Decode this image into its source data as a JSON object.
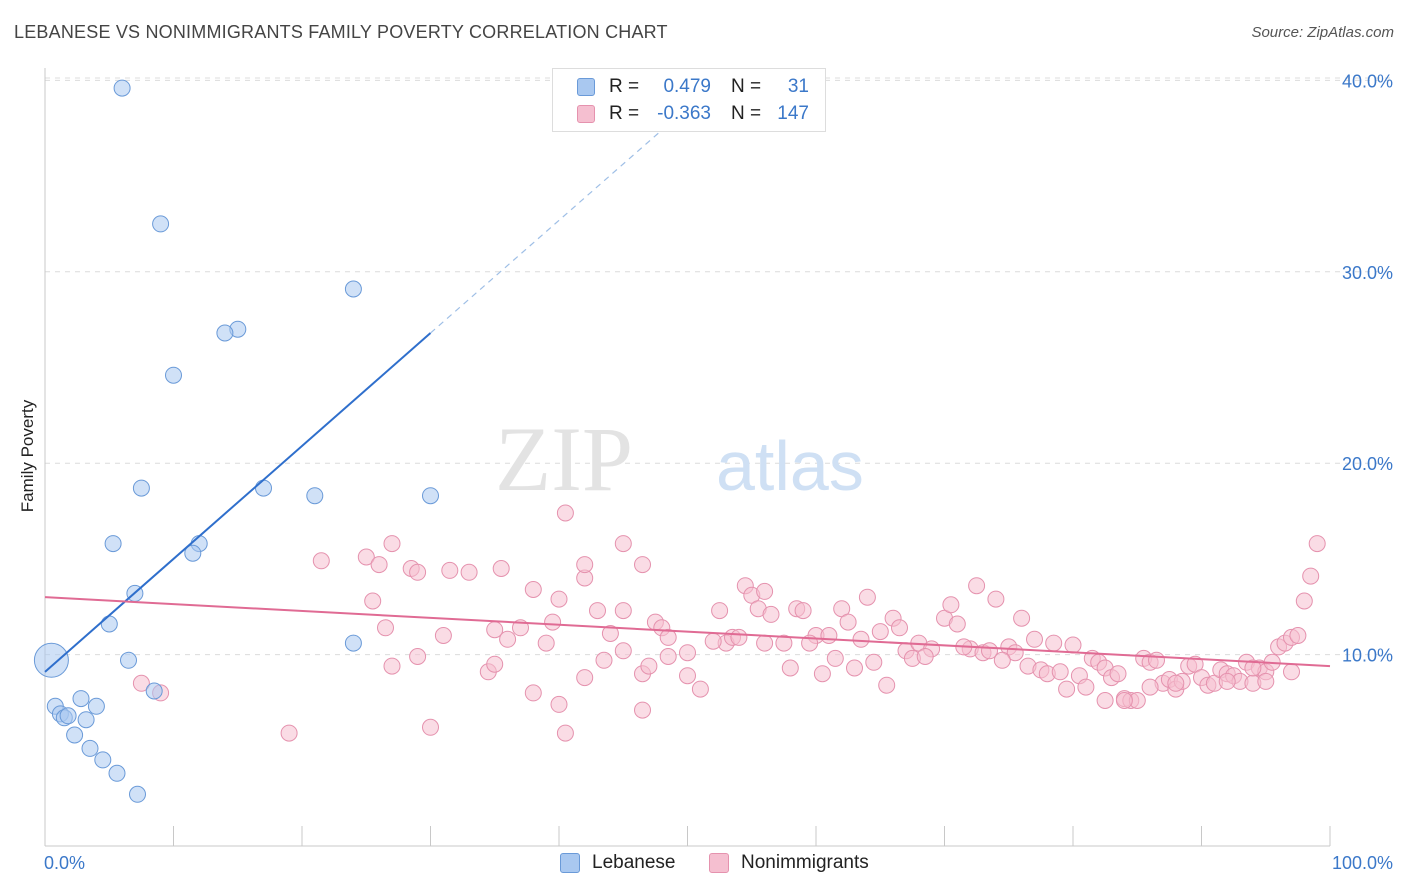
{
  "title": "LEBANESE VS NONIMMIGRANTS FAMILY POVERTY CORRELATION CHART",
  "source": "Source: ZipAtlas.com",
  "watermark": {
    "zip": "ZIP",
    "atlas": "atlas"
  },
  "legend": {
    "r_label": "R =",
    "n_label": "N =",
    "rows": [
      {
        "r": "0.479",
        "n": "31",
        "fill": "#a9c8f0",
        "stroke": "#6a9ad8"
      },
      {
        "r": "-0.363",
        "n": "147",
        "fill": "#f5bfd0",
        "stroke": "#e592ae"
      }
    ]
  },
  "bottom_legend": [
    {
      "label": "Lebanese",
      "fill": "#a9c8f0",
      "stroke": "#6a9ad8"
    },
    {
      "label": "Nonimmigrants",
      "fill": "#f5bfd0",
      "stroke": "#e592ae"
    }
  ],
  "chart_data": {
    "type": "scatter",
    "title": "LEBANESE VS NONIMMIGRANTS FAMILY POVERTY CORRELATION CHART",
    "xlabel": "",
    "ylabel": "Family Poverty",
    "xlim": [
      0,
      100
    ],
    "ylim": [
      0,
      42
    ],
    "x_tick_labels": [
      "0.0%",
      "100.0%"
    ],
    "y_ticks": [
      10,
      20,
      30,
      40
    ],
    "y_tick_labels": [
      "10.0%",
      "20.0%",
      "30.0%",
      "40.0%"
    ],
    "grid": "horizontal dashed",
    "legend_position": "top-center",
    "series": [
      {
        "name": "Lebanese",
        "color": "#6a9ad8",
        "fill": "#a9c8f0",
        "line_color": "#2f6fcc",
        "trend": {
          "x0": 0,
          "y0": 9.1,
          "x1": 30,
          "y1": 26.8,
          "dash_x_end": 48,
          "dash_y_end": 37.4
        },
        "points": [
          [
            6,
            39.6
          ],
          [
            9,
            32.5
          ],
          [
            24,
            29.1
          ],
          [
            15,
            27.0
          ],
          [
            14,
            26.8
          ],
          [
            10,
            24.6
          ],
          [
            17,
            18.7
          ],
          [
            7.5,
            18.7
          ],
          [
            21,
            18.3
          ],
          [
            30,
            18.3
          ],
          [
            5.3,
            15.8
          ],
          [
            12,
            15.8
          ],
          [
            11.5,
            15.3
          ],
          [
            7,
            13.2
          ],
          [
            5,
            11.6
          ],
          [
            24,
            10.6
          ],
          [
            6.5,
            9.7
          ],
          [
            8.5,
            8.1
          ],
          [
            0.5,
            9.7
          ],
          [
            0.8,
            7.3
          ],
          [
            1.2,
            6.9
          ],
          [
            2.8,
            7.7
          ],
          [
            1.5,
            6.7
          ],
          [
            3.2,
            6.6
          ],
          [
            4,
            7.3
          ],
          [
            2.3,
            5.8
          ],
          [
            3.5,
            5.1
          ],
          [
            4.5,
            4.5
          ],
          [
            5.6,
            3.8
          ],
          [
            7.2,
            2.7
          ],
          [
            1.8,
            6.8
          ]
        ]
      },
      {
        "name": "Nonimmigrants",
        "color": "#e592ae",
        "fill": "#f5bfd0",
        "line_color": "#e06b94",
        "trend": {
          "x0": 0,
          "y0": 13.0,
          "x1": 100,
          "y1": 9.4
        },
        "points": [
          [
            21.5,
            14.9
          ],
          [
            25,
            15.1
          ],
          [
            26,
            14.7
          ],
          [
            27,
            15.8
          ],
          [
            28.5,
            14.5
          ],
          [
            29,
            14.3
          ],
          [
            31.5,
            14.4
          ],
          [
            33,
            14.3
          ],
          [
            35.5,
            14.5
          ],
          [
            40.5,
            17.4
          ],
          [
            42,
            14.0
          ],
          [
            42,
            14.7
          ],
          [
            45,
            15.8
          ],
          [
            46.5,
            14.7
          ],
          [
            25.5,
            12.8
          ],
          [
            26.5,
            11.4
          ],
          [
            31,
            11.0
          ],
          [
            35,
            11.3
          ],
          [
            37,
            11.4
          ],
          [
            38,
            13.4
          ],
          [
            39.5,
            11.7
          ],
          [
            40,
            12.9
          ],
          [
            43,
            12.3
          ],
          [
            44,
            11.1
          ],
          [
            45,
            12.3
          ],
          [
            47.5,
            11.7
          ],
          [
            48,
            11.4
          ],
          [
            27,
            9.4
          ],
          [
            29,
            9.9
          ],
          [
            34.5,
            9.1
          ],
          [
            35,
            9.5
          ],
          [
            36,
            10.8
          ],
          [
            38,
            8.0
          ],
          [
            39,
            10.6
          ],
          [
            40,
            7.4
          ],
          [
            42,
            8.8
          ],
          [
            43.5,
            9.7
          ],
          [
            45,
            10.2
          ],
          [
            46.5,
            9.0
          ],
          [
            48.5,
            9.9
          ],
          [
            47,
            9.4
          ],
          [
            48.5,
            10.9
          ],
          [
            50,
            10.1
          ],
          [
            51,
            8.2
          ],
          [
            52.5,
            12.3
          ],
          [
            53,
            10.6
          ],
          [
            53.5,
            10.9
          ],
          [
            54.5,
            13.6
          ],
          [
            55,
            13.1
          ],
          [
            55.5,
            12.4
          ],
          [
            56,
            13.3
          ],
          [
            56.5,
            12.1
          ],
          [
            57.5,
            10.6
          ],
          [
            58,
            9.3
          ],
          [
            58.5,
            12.4
          ],
          [
            59,
            12.3
          ],
          [
            60,
            11.0
          ],
          [
            60.5,
            9.0
          ],
          [
            61,
            11.0
          ],
          [
            62,
            12.4
          ],
          [
            62.5,
            11.7
          ],
          [
            63.5,
            10.8
          ],
          [
            64,
            13.0
          ],
          [
            64.5,
            9.6
          ],
          [
            65,
            11.2
          ],
          [
            66,
            11.9
          ],
          [
            66.5,
            11.4
          ],
          [
            67,
            10.2
          ],
          [
            67.5,
            9.8
          ],
          [
            68,
            10.6
          ],
          [
            69,
            10.3
          ],
          [
            70,
            11.9
          ],
          [
            70.5,
            12.6
          ],
          [
            71,
            11.6
          ],
          [
            72,
            10.3
          ],
          [
            72.5,
            13.6
          ],
          [
            73,
            10.1
          ],
          [
            73.5,
            10.2
          ],
          [
            74,
            12.9
          ],
          [
            75,
            10.4
          ],
          [
            75.5,
            10.1
          ],
          [
            76,
            11.9
          ],
          [
            76.5,
            9.4
          ],
          [
            77,
            10.8
          ],
          [
            77.5,
            9.2
          ],
          [
            78,
            9.0
          ],
          [
            78.5,
            10.6
          ],
          [
            79,
            9.1
          ],
          [
            80,
            10.5
          ],
          [
            80.5,
            8.9
          ],
          [
            81,
            8.3
          ],
          [
            81.5,
            9.8
          ],
          [
            82,
            9.6
          ],
          [
            82.5,
            9.3
          ],
          [
            83,
            8.8
          ],
          [
            83.5,
            9.0
          ],
          [
            84,
            7.7
          ],
          [
            84.5,
            7.6
          ],
          [
            85,
            7.6
          ],
          [
            85.5,
            9.8
          ],
          [
            86,
            9.6
          ],
          [
            86.5,
            9.7
          ],
          [
            87,
            8.5
          ],
          [
            87.5,
            8.7
          ],
          [
            88,
            8.2
          ],
          [
            88.5,
            8.6
          ],
          [
            89,
            9.4
          ],
          [
            89.5,
            9.5
          ],
          [
            90,
            8.8
          ],
          [
            90.5,
            8.4
          ],
          [
            91,
            8.5
          ],
          [
            91.5,
            9.2
          ],
          [
            92,
            9.0
          ],
          [
            92.5,
            8.9
          ],
          [
            93,
            8.6
          ],
          [
            93.5,
            9.6
          ],
          [
            94,
            8.5
          ],
          [
            94.5,
            9.3
          ],
          [
            95,
            9.1
          ],
          [
            95.5,
            9.6
          ],
          [
            96,
            10.4
          ],
          [
            96.5,
            10.6
          ],
          [
            97,
            10.9
          ],
          [
            97.5,
            11.0
          ],
          [
            98,
            12.8
          ],
          [
            98.5,
            14.1
          ],
          [
            99,
            15.8
          ],
          [
            7.5,
            8.5
          ],
          [
            9,
            8.0
          ],
          [
            19,
            5.9
          ],
          [
            30,
            6.2
          ],
          [
            40.5,
            5.9
          ],
          [
            46.5,
            7.1
          ],
          [
            50,
            8.9
          ],
          [
            52,
            10.7
          ],
          [
            54,
            10.9
          ],
          [
            56,
            10.6
          ],
          [
            59.5,
            10.6
          ],
          [
            61.5,
            9.8
          ],
          [
            63,
            9.3
          ],
          [
            65.5,
            8.4
          ],
          [
            68.5,
            9.9
          ],
          [
            71.5,
            10.4
          ],
          [
            74.5,
            9.7
          ],
          [
            79.5,
            8.2
          ],
          [
            82.5,
            7.6
          ],
          [
            84,
            7.6
          ],
          [
            86,
            8.3
          ],
          [
            88,
            8.5
          ],
          [
            92,
            8.6
          ],
          [
            94,
            9.3
          ],
          [
            95,
            8.6
          ],
          [
            97,
            9.1
          ]
        ]
      }
    ]
  }
}
